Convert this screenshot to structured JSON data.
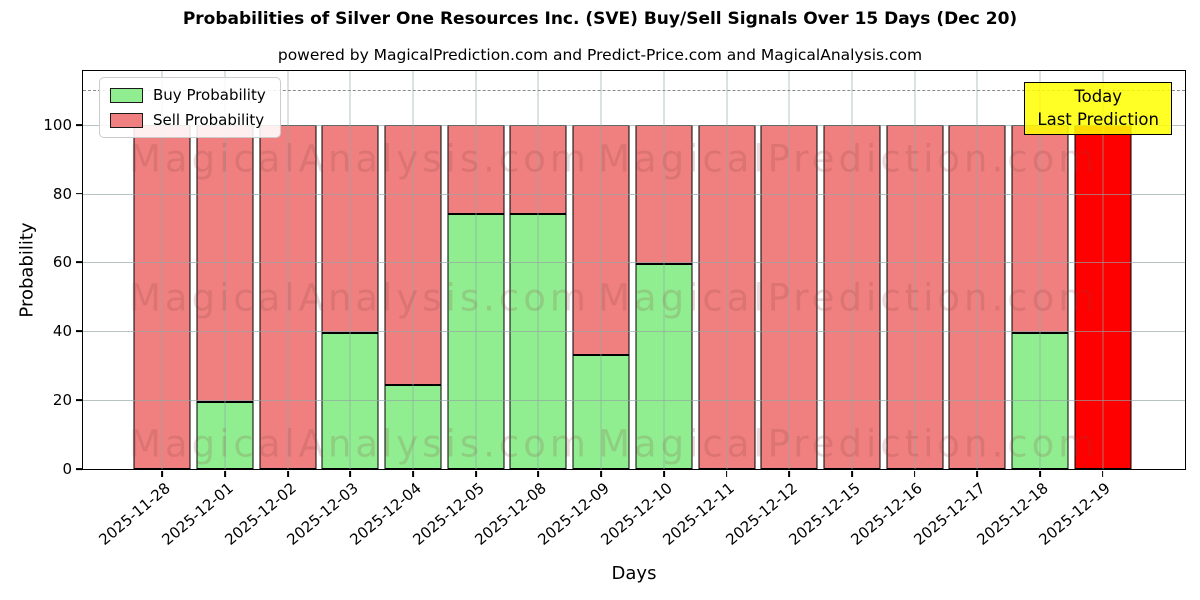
{
  "header": {
    "title": "Probabilities of Silver One Resources Inc. (SVE) Buy/Sell Signals Over 15 Days (Dec 20)",
    "subtitle": "powered by MagicalPrediction.com and Predict-Price.com and MagicalAnalysis.com"
  },
  "chart_data": {
    "type": "bar",
    "stacked": true,
    "title": "Probabilities of Silver One Resources Inc. (SVE) Buy/Sell Signals Over 15 Days (Dec 20)",
    "xlabel": "Days",
    "ylabel": "Probability",
    "categories": [
      "2025-11-28",
      "2025-12-01",
      "2025-12-02",
      "2025-12-03",
      "2025-12-04",
      "2025-12-05",
      "2025-12-08",
      "2025-12-09",
      "2025-12-10",
      "2025-12-11",
      "2025-12-12",
      "2025-12-15",
      "2025-12-16",
      "2025-12-17",
      "2025-12-18",
      "2025-12-19"
    ],
    "series": [
      {
        "name": "Buy Probability",
        "color": "#90EE90",
        "values": [
          0,
          19.5,
          0,
          39.5,
          24.5,
          74,
          74,
          33,
          59.5,
          0,
          0,
          0,
          0,
          0,
          39.5,
          0
        ]
      },
      {
        "name": "Sell Probability",
        "color": "#F08080",
        "values": [
          100,
          80.5,
          100,
          60.5,
          75.5,
          26,
          26,
          67,
          40.5,
          100,
          100,
          100,
          100,
          100,
          60.5,
          100
        ]
      }
    ],
    "highlight_last_bar": {
      "category": "2025-12-19",
      "color": "#FF0000",
      "value": 100
    },
    "yticks": [
      0,
      20,
      40,
      60,
      80,
      100
    ],
    "ylim": [
      0,
      115.6
    ],
    "dashed_guide_y": 110,
    "grid": true,
    "legend_position": "upper left"
  },
  "annotation_box": {
    "line1": "Today",
    "line2": "Last Prediction",
    "bg_color": "#FFFF00"
  },
  "watermarks": {
    "left_text": "MagicalAnalysis.com",
    "right_text": "MagicalPrediction.com"
  },
  "colors": {
    "buy": "#90EE90",
    "sell": "#F08080",
    "today_bar": "#FF0000",
    "annotation_bg": "#FFFF00",
    "grid": "#91a5a5",
    "dashed_guide": "#8a8a8a",
    "bar_edge": "#000000"
  }
}
